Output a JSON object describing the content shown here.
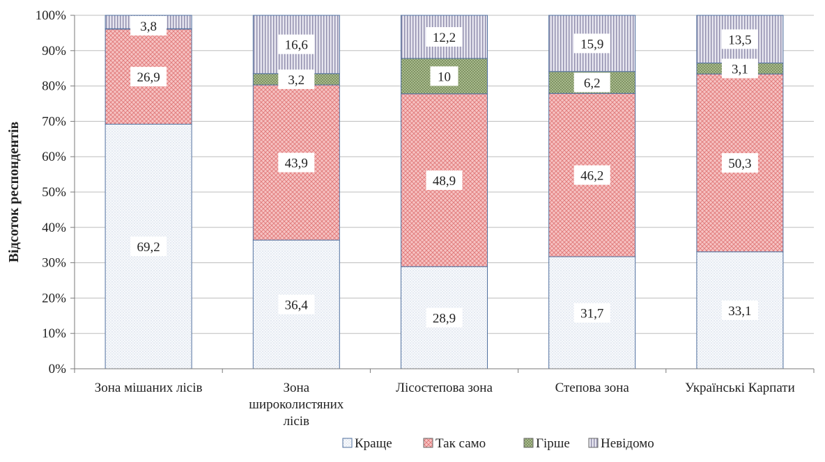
{
  "chart_data": {
    "type": "bar",
    "stacked": true,
    "percent": true,
    "title": "",
    "xlabel": "",
    "ylabel": "Відсоток респондентів",
    "ylim": [
      0,
      100
    ],
    "yticks": [
      "0%",
      "10%",
      "20%",
      "30%",
      "40%",
      "50%",
      "60%",
      "70%",
      "80%",
      "90%",
      "100%"
    ],
    "grid": true,
    "legend": "bottom",
    "categories": [
      [
        "Зона мішаних лісів"
      ],
      [
        "Зона",
        "широколистяних",
        "лісів"
      ],
      [
        "Лісостепова зона"
      ],
      [
        "Степова зона"
      ],
      [
        "Українські Карпати"
      ]
    ],
    "series": [
      {
        "name": "Краще",
        "values": [
          69.2,
          36.4,
          28.9,
          31.7,
          33.1
        ],
        "labels": [
          "69,2",
          "36,4",
          "28,9",
          "31,7",
          "33,1"
        ],
        "color": "#f4f7fb",
        "pattern": "dots"
      },
      {
        "name": "Так само",
        "values": [
          26.9,
          43.9,
          48.9,
          46.2,
          50.3
        ],
        "labels": [
          "26,9",
          "43,9",
          "48,9",
          "46,2",
          "50,3"
        ],
        "color": "#f2a0a0",
        "pattern": "crosshatch"
      },
      {
        "name": "Гірше",
        "values": [
          0.1,
          3.2,
          10,
          6.2,
          3.1
        ],
        "labels": [
          "",
          "3,2",
          "10",
          "6,2",
          "3,1"
        ],
        "color": "#9aae7c",
        "pattern": "checker"
      },
      {
        "name": "Невідомо",
        "values": [
          3.8,
          16.6,
          12.2,
          15.9,
          13.5
        ],
        "labels": [
          "3,8",
          "16,6",
          "12,2",
          "15,9",
          "13,5"
        ],
        "color": "#c4c2d6",
        "pattern": "vlines"
      }
    ]
  }
}
